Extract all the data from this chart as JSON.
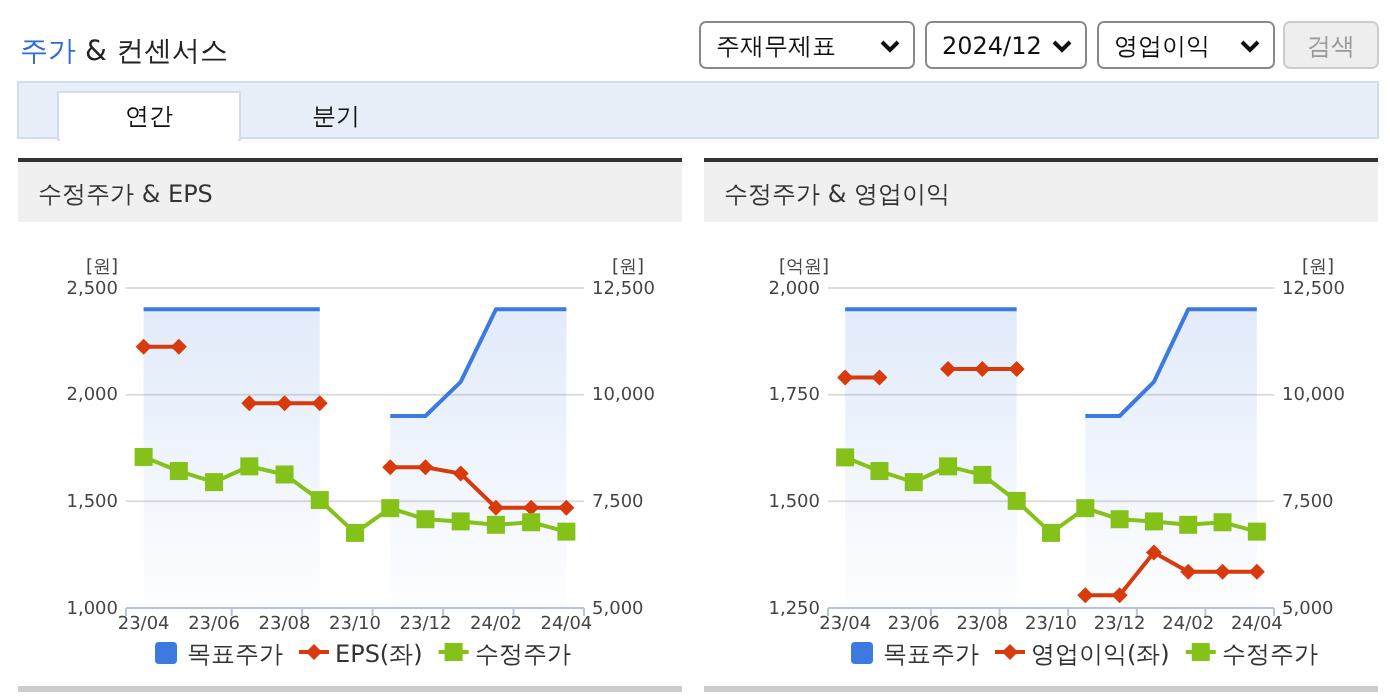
{
  "chart_data": [
    {
      "type": "other",
      "title": "주가 & 컨센서스",
      "annotations": [
        "주재무제표",
        "2024/12",
        "영업이익",
        "검색",
        "연간",
        "분기"
      ]
    },
    {
      "type": "line",
      "title": "수정주가 & EPS",
      "ylabel": "[원]",
      "y2label": "[원]",
      "categories": [
        "23/04",
        null,
        "23/06",
        null,
        "23/08",
        null,
        "23/10",
        null,
        "23/12",
        null,
        "24/02",
        null,
        "24/04"
      ],
      "ylim": [
        1000,
        2500
      ],
      "yticks": [
        {
          "value": 1000,
          "label": "1,000"
        },
        {
          "value": 1500,
          "label": "1,500"
        },
        {
          "value": 2000,
          "label": "2,000"
        },
        {
          "value": 2500,
          "label": "2,500"
        }
      ],
      "y2lim": [
        5000,
        12500
      ],
      "y2ticks": [
        {
          "value": 5000,
          "label": "5,000"
        },
        {
          "value": 7500,
          "label": "7,500"
        },
        {
          "value": 10000,
          "label": "10,000"
        },
        {
          "value": 12500,
          "label": "12,500"
        }
      ],
      "grid": "y",
      "legend": "bottom",
      "series": [
        {
          "name": "목표주가",
          "type": "area",
          "axis": "y2",
          "color": "#3c7ae0",
          "values": [
            12000,
            12000,
            12000,
            12000,
            12000,
            12000,
            null,
            9500,
            9500,
            10300,
            12000,
            12000,
            12000
          ]
        },
        {
          "name": "EPS(좌)",
          "type": "line",
          "axis": "y",
          "color": "#d83a0b",
          "marker": "diamond",
          "values": [
            2225,
            2225,
            null,
            1960,
            1960,
            1960,
            null,
            1660,
            1660,
            1630,
            1470,
            1470,
            1470
          ]
        },
        {
          "name": "수정주가",
          "type": "line",
          "axis": "y2",
          "color": "#84c21a",
          "marker": "square",
          "values": [
            8540,
            8210,
            7950,
            8320,
            8130,
            7530,
            6760,
            7340,
            7080,
            7030,
            6950,
            7010,
            6790
          ]
        }
      ]
    },
    {
      "type": "line",
      "title": "수정주가 & 영업이익",
      "ylabel": "[억원]",
      "y2label": "[원]",
      "categories": [
        "23/04",
        null,
        "23/06",
        null,
        "23/08",
        null,
        "23/10",
        null,
        "23/12",
        null,
        "24/02",
        null,
        "24/04"
      ],
      "ylim": [
        1250,
        2000
      ],
      "yticks": [
        {
          "value": 1250,
          "label": "1,250"
        },
        {
          "value": 1500,
          "label": "1,500"
        },
        {
          "value": 1750,
          "label": "1,750"
        },
        {
          "value": 2000,
          "label": "2,000"
        }
      ],
      "y2lim": [
        5000,
        12500
      ],
      "y2ticks": [
        {
          "value": 5000,
          "label": "5,000"
        },
        {
          "value": 7500,
          "label": "7,500"
        },
        {
          "value": 10000,
          "label": "10,000"
        },
        {
          "value": 12500,
          "label": "12,500"
        }
      ],
      "grid": "y",
      "legend": "bottom",
      "series": [
        {
          "name": "목표주가",
          "type": "area",
          "axis": "y2",
          "color": "#3c7ae0",
          "values": [
            12000,
            12000,
            12000,
            12000,
            12000,
            12000,
            null,
            9500,
            9500,
            10300,
            12000,
            12000,
            12000
          ]
        },
        {
          "name": "영업이익(좌)",
          "type": "line",
          "axis": "y",
          "color": "#d83a0b",
          "marker": "diamond",
          "values": [
            1790,
            1790,
            null,
            1810,
            1810,
            1810,
            null,
            1280,
            1280,
            1380,
            1335,
            1335,
            1335
          ]
        },
        {
          "name": "수정주가",
          "type": "line",
          "axis": "y2",
          "color": "#84c21a",
          "marker": "square",
          "values": [
            8530,
            8210,
            7950,
            8320,
            8120,
            7510,
            6760,
            7340,
            7080,
            7030,
            6950,
            7010,
            6790
          ]
        }
      ]
    }
  ]
}
